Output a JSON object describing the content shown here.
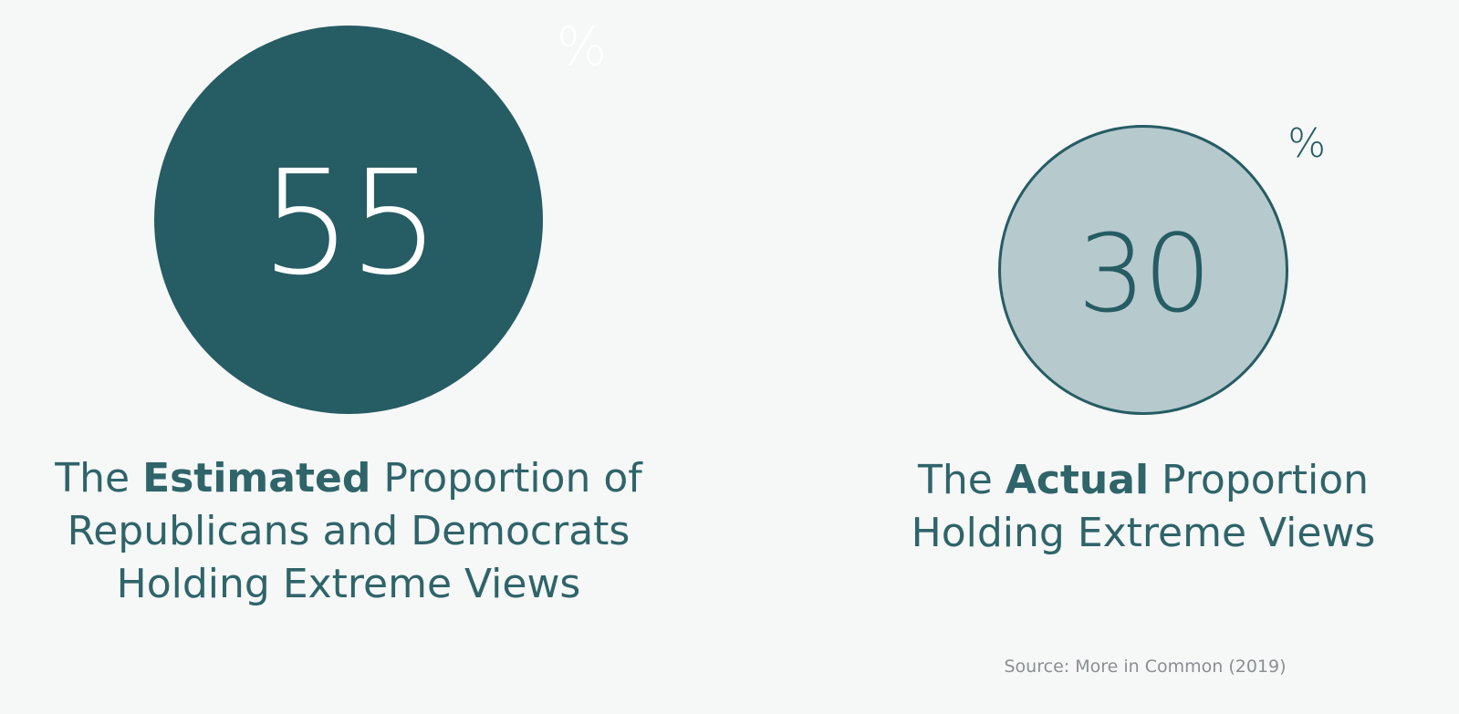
{
  "chart_data": {
    "type": "bubble",
    "unit": "%",
    "series": [
      {
        "value": 55,
        "label_lines": [
          [
            "The ",
            "Estimated",
            " Proportion of"
          ],
          "Republicans and Democrats",
          "Holding Extreme Views"
        ]
      },
      {
        "value": 30,
        "label_lines": [
          [
            "The ",
            "Actual",
            " Proportion"
          ],
          "Holding Extreme Views"
        ]
      }
    ],
    "source": "Source: More in Common (2019)"
  },
  "colors": {
    "estimated_fill": "#265c63",
    "actual_fill": "#b6c9cd",
    "actual_stroke": "#265c63",
    "text": "#2f6469"
  }
}
